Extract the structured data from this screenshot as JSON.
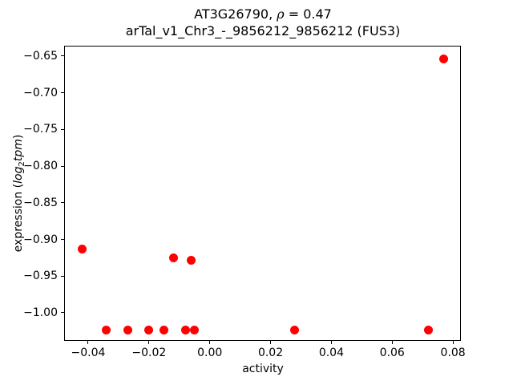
{
  "title": {
    "line1_prefix": "AT3G26790, ",
    "line1_rho": "ρ",
    "line1_suffix": " = 0.47",
    "line2": "arTal_v1_Chr3_-_9856212_9856212 (FUS3)"
  },
  "axes": {
    "xlabel": "activity",
    "ylabel_prefix": "expression (",
    "ylabel_log": "log",
    "ylabel_sub": "2",
    "ylabel_post": "tpm",
    "ylabel_suffix": ")"
  },
  "chart_data": {
    "type": "scatter",
    "title": "AT3G26790, ρ = 0.47",
    "subtitle": "arTal_v1_Chr3_-_9856212_9856212 (FUS3)",
    "xlabel": "activity",
    "ylabel": "expression (log2 tpm)",
    "marker_color": "#ff0000",
    "marker_diameter_px": 11,
    "grid": false,
    "legend": false,
    "xlim": [
      -0.0479,
      0.0826
    ],
    "ylim": [
      -1.0383,
      -0.6358
    ],
    "x_ticks": [
      {
        "label": "−0.04",
        "value": -0.04
      },
      {
        "label": "−0.02",
        "value": -0.02
      },
      {
        "label": "0.00",
        "value": 0.0
      },
      {
        "label": "0.02",
        "value": 0.02
      },
      {
        "label": "0.04",
        "value": 0.04
      },
      {
        "label": "0.06",
        "value": 0.06
      },
      {
        "label": "0.08",
        "value": 0.08
      }
    ],
    "y_ticks": [
      {
        "label": "−0.65",
        "value": -0.65
      },
      {
        "label": "−0.70",
        "value": -0.7
      },
      {
        "label": "−0.75",
        "value": -0.75
      },
      {
        "label": "−0.80",
        "value": -0.8
      },
      {
        "label": "−0.85",
        "value": -0.85
      },
      {
        "label": "−0.90",
        "value": -0.9
      },
      {
        "label": "−0.95",
        "value": -0.95
      },
      {
        "label": "−1.00",
        "value": -1.0
      }
    ],
    "points": [
      {
        "x": -0.042,
        "y": -0.913
      },
      {
        "x": -0.034,
        "y": -1.023
      },
      {
        "x": -0.027,
        "y": -1.023
      },
      {
        "x": -0.02,
        "y": -1.023
      },
      {
        "x": -0.015,
        "y": -1.023
      },
      {
        "x": -0.012,
        "y": -0.925
      },
      {
        "x": -0.008,
        "y": -1.023
      },
      {
        "x": -0.006,
        "y": -0.928
      },
      {
        "x": -0.005,
        "y": -1.023
      },
      {
        "x": 0.028,
        "y": -1.023
      },
      {
        "x": 0.072,
        "y": -1.023
      },
      {
        "x": 0.077,
        "y": -0.654
      }
    ]
  }
}
